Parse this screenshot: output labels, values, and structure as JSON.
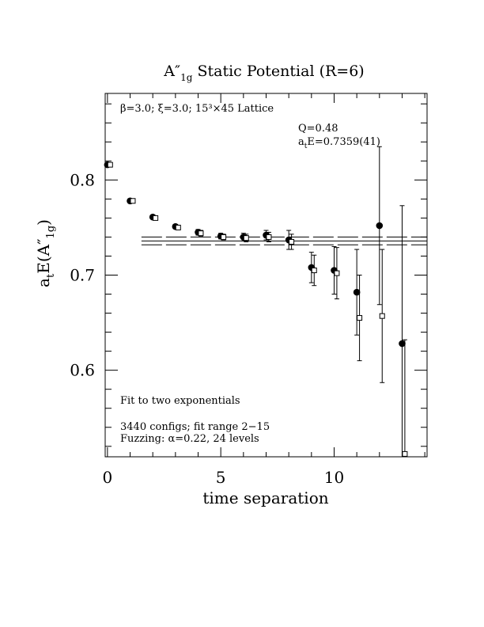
{
  "chart_data": {
    "type": "scatter",
    "title_main": "A″",
    "title_sub": "1g",
    "title_rest": " Static Potential (R=6)",
    "xlabel": "time separation",
    "ylabel_main": "a",
    "ylabel_t": "t",
    "ylabel_rest": "E(A″",
    "ylabel_sub": "1g",
    "ylabel_close": ")",
    "xlim": [
      -0.1,
      14.1
    ],
    "ylim": [
      0.509,
      0.891
    ],
    "x_ticks": [
      0,
      5,
      10
    ],
    "x_tick_labels": [
      "0",
      "5",
      "10"
    ],
    "y_ticks": [
      0.6,
      0.7,
      0.8
    ],
    "y_tick_labels": [
      "0.6",
      "0.7",
      "0.8"
    ],
    "grid": false,
    "annotations": {
      "lattice_info": "β=3.0; ξ=3.0; 15³×45 Lattice",
      "q_value": "Q=0.48",
      "energy_prefix": "a",
      "energy_sub": "t",
      "energy_rest": "E=0.7359(41)",
      "fit_label": "Fit to two exponentials",
      "configs": "3440 configs; fit range 2−15",
      "fuzzing": "Fuzzing: α=0.22, 24 levels"
    },
    "fit": {
      "value": 0.7359,
      "error": 0.0041,
      "x_range": [
        1.5,
        14.1
      ]
    },
    "series": [
      {
        "marker": "filled-circle",
        "x": [
          0,
          1,
          2,
          3,
          4,
          5,
          6,
          7,
          8,
          9,
          10,
          11,
          12,
          13
        ],
        "y": [
          0.816,
          0.778,
          0.761,
          0.751,
          0.745,
          0.741,
          0.74,
          0.742,
          0.737,
          0.708,
          0.705,
          0.682,
          0.752,
          0.628
        ],
        "err": [
          0.002,
          0.002,
          0.002,
          0.002,
          0.003,
          0.003,
          0.004,
          0.005,
          0.01,
          0.016,
          0.025,
          0.045,
          0.083,
          0.145
        ]
      },
      {
        "marker": "open-square",
        "x": [
          0.12,
          1.12,
          2.12,
          3.12,
          4.12,
          5.12,
          6.12,
          7.12,
          8.12,
          9.12,
          10.12,
          11.12,
          12.12,
          13.12
        ],
        "y": [
          0.816,
          0.778,
          0.76,
          0.75,
          0.744,
          0.74,
          0.739,
          0.74,
          0.735,
          0.705,
          0.702,
          0.655,
          0.657,
          0.512
        ],
        "err": [
          0.002,
          0.002,
          0.002,
          0.002,
          0.003,
          0.003,
          0.004,
          0.005,
          0.008,
          0.016,
          0.027,
          0.045,
          0.07,
          0.12
        ]
      }
    ]
  }
}
